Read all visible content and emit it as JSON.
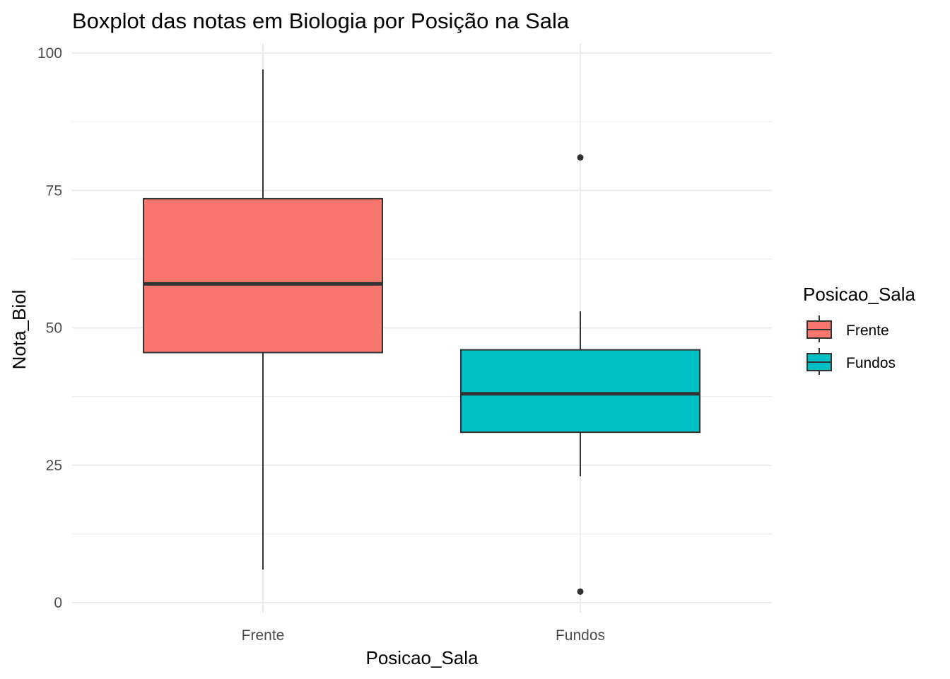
{
  "chart_data": {
    "type": "boxplot",
    "title": "Boxplot das notas em Biologia por Posição na Sala",
    "xlabel": "Posicao_Sala",
    "ylabel": "Nota_Biol",
    "ylim": [
      0,
      100
    ],
    "y_ticks": [
      0,
      25,
      50,
      75,
      100
    ],
    "y_tick_labels": [
      "0",
      "25",
      "50",
      "75",
      "100"
    ],
    "grid": true,
    "categories": [
      "Frente",
      "Fundos"
    ],
    "series": [
      {
        "category": "Frente",
        "color": "#F8766D",
        "whisker_low": 6,
        "q1": 45.5,
        "median": 58,
        "q3": 73.5,
        "whisker_high": 97,
        "outliers": []
      },
      {
        "category": "Fundos",
        "color": "#00BFC4",
        "whisker_low": 23,
        "q1": 31,
        "median": 38,
        "q3": 46,
        "whisker_high": 53,
        "outliers": [
          81,
          2
        ]
      }
    ],
    "legend": {
      "title": "Posicao_Sala",
      "position": "right",
      "entries": [
        {
          "label": "Frente",
          "color": "#F8766D"
        },
        {
          "label": "Fundos",
          "color": "#00BFC4"
        }
      ]
    }
  }
}
